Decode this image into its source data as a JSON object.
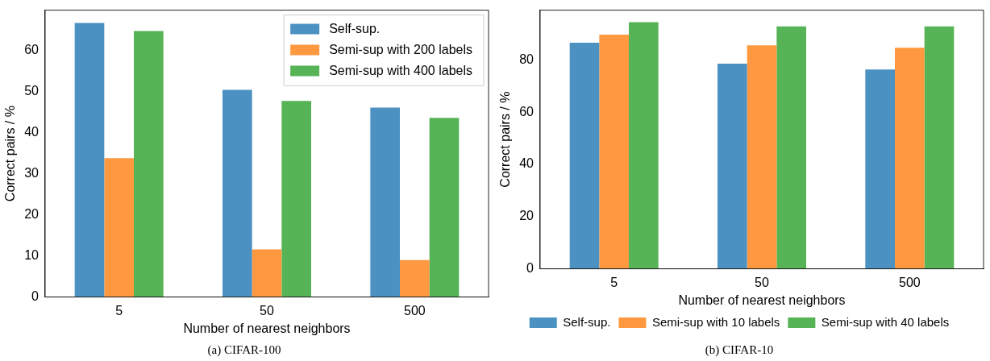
{
  "chart_data": [
    {
      "type": "bar",
      "title": "(a) CIFAR-100",
      "xlabel": "Number of nearest neighbors",
      "ylabel": "Correct pairs / %",
      "categories": [
        "5",
        "50",
        "500"
      ],
      "series": [
        {
          "name": "Self-sup.",
          "color": "#4b92c3",
          "values": [
            66.7,
            50.4,
            46.1
          ]
        },
        {
          "name": "Semi-sup with 200 labels",
          "color": "#ff983e",
          "values": [
            33.8,
            11.6,
            9.0
          ]
        },
        {
          "name": "Semi-sup with 400 labels",
          "color": "#56b356",
          "values": [
            64.7,
            47.7,
            43.6
          ]
        }
      ],
      "ylim": [
        0,
        69.8
      ],
      "yticks": [
        0,
        10,
        20,
        30,
        40,
        50,
        60
      ],
      "grid": false,
      "legend": "top right"
    },
    {
      "type": "bar",
      "title": "(b) CIFAR-10",
      "xlabel": "Number of nearest neighbors",
      "ylabel": "Correct pairs / %",
      "categories": [
        "5",
        "50",
        "500"
      ],
      "series": [
        {
          "name": "Self-sup.",
          "color": "#4b92c3",
          "values": [
            86.6,
            78.6,
            76.4
          ]
        },
        {
          "name": "Semi-sup with 10 labels",
          "color": "#ff983e",
          "values": [
            89.7,
            85.6,
            84.7
          ]
        },
        {
          "name": "Semi-sup with 40 labels",
          "color": "#56b356",
          "values": [
            94.5,
            92.9,
            92.9
          ]
        }
      ],
      "ylim": [
        0,
        99.1
      ],
      "yticks": [
        0,
        20,
        40,
        60,
        80
      ],
      "grid": false,
      "legend": "bottom"
    }
  ]
}
